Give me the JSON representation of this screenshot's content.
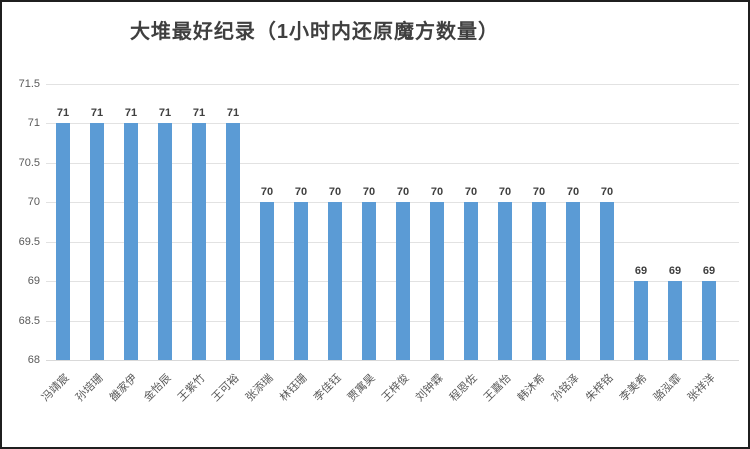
{
  "chart_data": {
    "type": "bar",
    "title": "大堆最好纪录（1小时内还原魔方数量）",
    "categories": [
      "冯靖宸",
      "孙培珊",
      "雒家伊",
      "金怡辰",
      "王紫竹",
      "王可裕",
      "张添瑞",
      "林钰珊",
      "李佳钰",
      "贾寓昊",
      "王梓俊",
      "刘钟霖",
      "程恩佐",
      "王嘉怡",
      "韩沐希",
      "孙铭泽",
      "朱梓铭",
      "李美希",
      "骆泓霏",
      "张祥洋"
    ],
    "values": [
      71,
      71,
      71,
      71,
      71,
      71,
      70,
      70,
      70,
      70,
      70,
      70,
      70,
      70,
      70,
      70,
      70,
      69,
      69,
      69
    ],
    "xlabel": "",
    "ylabel": "",
    "ylim": [
      68,
      71.5
    ],
    "yticks": [
      "68",
      "68.5",
      "69",
      "69.5",
      "70",
      "70.5",
      "71",
      "71.5"
    ],
    "grid": true,
    "data_labels_shown": true,
    "legend": "none",
    "bar_color": "#5b9bd5",
    "grid_color": "#e2e2e2",
    "axis_line_color": "#d9d9d9",
    "tick_label_color": "#595959",
    "data_label_color": "#404040",
    "title_color": "#3f3f3f"
  }
}
